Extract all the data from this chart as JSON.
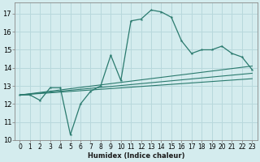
{
  "xlabel": "Humidex (Indice chaleur)",
  "bg_color": "#d4ecee",
  "grid_color": "#b8d8dc",
  "line_color": "#2a7a6e",
  "xlim": [
    -0.5,
    23.5
  ],
  "ylim": [
    10,
    17.6
  ],
  "yticks": [
    10,
    11,
    12,
    13,
    14,
    15,
    16,
    17
  ],
  "xticks": [
    0,
    1,
    2,
    3,
    4,
    5,
    6,
    7,
    8,
    9,
    10,
    11,
    12,
    13,
    14,
    15,
    16,
    17,
    18,
    19,
    20,
    21,
    22,
    23
  ],
  "line1_x": [
    0,
    1,
    2,
    3,
    4,
    5,
    6,
    7,
    8,
    9,
    10,
    11,
    12,
    13,
    14,
    15,
    16,
    17,
    18,
    19,
    20,
    21,
    22,
    23
  ],
  "line1_y": [
    12.5,
    12.5,
    12.2,
    12.9,
    12.9,
    10.3,
    12.0,
    12.7,
    13.0,
    14.7,
    13.3,
    16.6,
    16.7,
    17.2,
    17.1,
    16.8,
    15.5,
    14.8,
    15.0,
    15.0,
    15.2,
    14.8,
    14.6,
    13.9
  ],
  "line2_x": [
    0,
    23
  ],
  "line2_y": [
    12.5,
    14.1
  ],
  "line3_x": [
    0,
    23
  ],
  "line3_y": [
    12.5,
    13.7
  ],
  "line4_x": [
    0,
    23
  ],
  "line4_y": [
    12.5,
    13.4
  ]
}
